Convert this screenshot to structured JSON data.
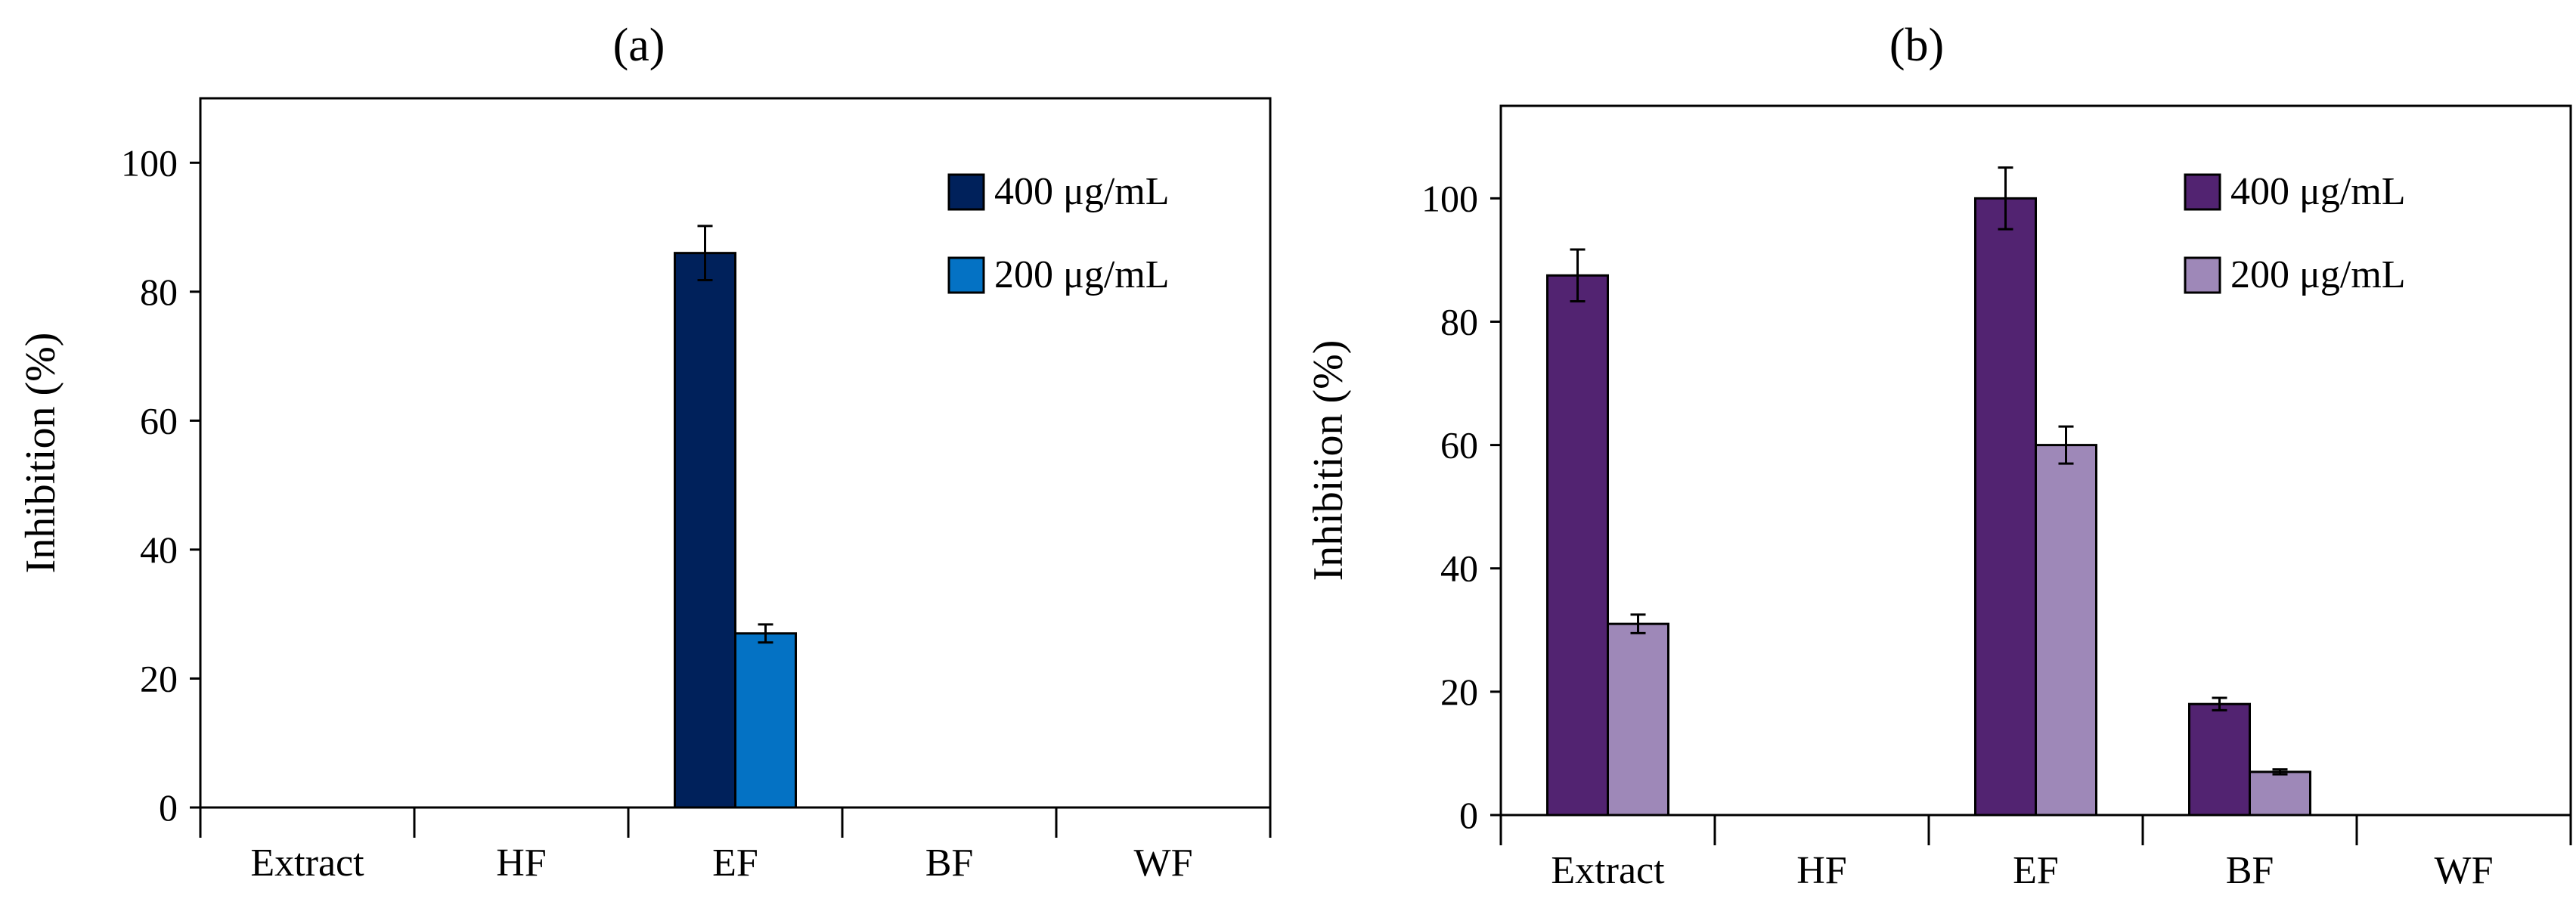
{
  "chart_data": [
    {
      "type": "bar",
      "title": "(a)",
      "xlabel": "",
      "ylabel": "Inhibition (%)",
      "ylim": [
        0,
        110
      ],
      "yticks": [
        0,
        20,
        40,
        60,
        80,
        100
      ],
      "grid": false,
      "legend_position": "top-right",
      "categories": [
        "Extract",
        "HF",
        "EF",
        "BF",
        "WF"
      ],
      "series": [
        {
          "name": "400 μg/mL",
          "color": "#00215B",
          "values": [
            0,
            0,
            86,
            0,
            0
          ],
          "errors": [
            0,
            0,
            4.2,
            0,
            0
          ]
        },
        {
          "name": "200 μg/mL",
          "color": "#0472C4",
          "values": [
            0,
            0,
            27,
            0,
            0
          ],
          "errors": [
            0,
            0,
            1.4,
            0,
            0
          ]
        }
      ]
    },
    {
      "type": "bar",
      "title": "(b)",
      "xlabel": "",
      "ylabel": "Inhibition (%)",
      "ylim": [
        0,
        115
      ],
      "yticks": [
        0,
        20,
        40,
        60,
        80,
        100
      ],
      "grid": false,
      "legend_position": "top-right",
      "categories": [
        "Extract",
        "HF",
        "EF",
        "BF",
        "WF"
      ],
      "series": [
        {
          "name": "400 μg/mL",
          "color": "#522371",
          "values": [
            87.5,
            0,
            100,
            18,
            0
          ],
          "errors": [
            4.2,
            0,
            5,
            1,
            0
          ]
        },
        {
          "name": "200 μg/mL",
          "color": "#9E88B8",
          "values": [
            31,
            0,
            60,
            7,
            0
          ],
          "errors": [
            1.5,
            0,
            3,
            0.4,
            0
          ]
        }
      ]
    }
  ]
}
